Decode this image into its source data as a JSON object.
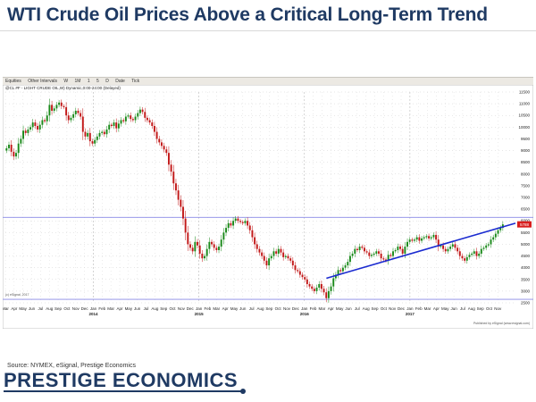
{
  "slide": {
    "title": "WTI Crude Oil Prices Above a Critical Long-Term Trend",
    "source": "Source: NYMEX, eSignal, Prestige Economics",
    "brand": "PRESTIGE ECONOMICS"
  },
  "colors": {
    "title": "#1f3a63",
    "candle_up": "#1a8a1a",
    "candle_down": "#c21818",
    "trendline": "#1b2bd0",
    "reference_line": "#8a8ae6",
    "price_tag": "#d81e1e"
  },
  "toolbar": {
    "items": [
      "Equities",
      "Other Intervals",
      "W",
      "1M",
      "1",
      "5",
      "D",
      "Date",
      "Tick"
    ]
  },
  "chart_data": {
    "type": "candlestick",
    "symbol_label": "@CL #F - LIGHT CRUDE OIL,W) Dynamic,0:00-24:00 (Delayed)",
    "watermark": "(c) eSignal, 2017",
    "publisher": "Published by eSignal (www.esignal.com)",
    "ylim": [
      2500,
      11500
    ],
    "yticks": [
      2500,
      3000,
      3500,
      4000,
      4500,
      5000,
      5500,
      6000,
      6500,
      7000,
      7500,
      8000,
      8500,
      9000,
      9500,
      10000,
      10500,
      11000,
      11500
    ],
    "ytick_labels": [
      "2500",
      "3000",
      "3500",
      "4000",
      "4500",
      "5000",
      "5500",
      "6000",
      "6500",
      "7000",
      "7500",
      "8000",
      "8500",
      "9000",
      "9500",
      "10000",
      "10500",
      "11000",
      "11500"
    ],
    "xlim": [
      0,
      58
    ],
    "month_ticks": [
      {
        "x": 0,
        "label": "Mar"
      },
      {
        "x": 1,
        "label": "Apr"
      },
      {
        "x": 2,
        "label": "May"
      },
      {
        "x": 3,
        "label": "Jun"
      },
      {
        "x": 4,
        "label": "Jul"
      },
      {
        "x": 5,
        "label": "Aug"
      },
      {
        "x": 6,
        "label": "Sep"
      },
      {
        "x": 7,
        "label": "Oct"
      },
      {
        "x": 8,
        "label": "Nov"
      },
      {
        "x": 9,
        "label": "Dec"
      },
      {
        "x": 10,
        "label": "Jan"
      },
      {
        "x": 11,
        "label": "Feb"
      },
      {
        "x": 12,
        "label": "Mar"
      },
      {
        "x": 13,
        "label": "Apr"
      },
      {
        "x": 14,
        "label": "May"
      },
      {
        "x": 15,
        "label": "Jun"
      },
      {
        "x": 16,
        "label": "Jul"
      },
      {
        "x": 17,
        "label": "Aug"
      },
      {
        "x": 18,
        "label": "Sep"
      },
      {
        "x": 19,
        "label": "Oct"
      },
      {
        "x": 20,
        "label": "Nov"
      },
      {
        "x": 21,
        "label": "Dec"
      },
      {
        "x": 22,
        "label": "Jan"
      },
      {
        "x": 23,
        "label": "Feb"
      },
      {
        "x": 24,
        "label": "Mar"
      },
      {
        "x": 25,
        "label": "Apr"
      },
      {
        "x": 26,
        "label": "May"
      },
      {
        "x": 27,
        "label": "Jun"
      },
      {
        "x": 28,
        "label": "Jul"
      },
      {
        "x": 29,
        "label": "Aug"
      },
      {
        "x": 30,
        "label": "Sep"
      },
      {
        "x": 31,
        "label": "Oct"
      },
      {
        "x": 32,
        "label": "Nov"
      },
      {
        "x": 33,
        "label": "Dec"
      },
      {
        "x": 34,
        "label": "Jan"
      },
      {
        "x": 35,
        "label": "Feb"
      },
      {
        "x": 36,
        "label": "Mar"
      },
      {
        "x": 37,
        "label": "Apr"
      },
      {
        "x": 38,
        "label": "May"
      },
      {
        "x": 39,
        "label": "Jun"
      },
      {
        "x": 40,
        "label": "Jul"
      },
      {
        "x": 41,
        "label": "Aug"
      },
      {
        "x": 42,
        "label": "Sep"
      },
      {
        "x": 43,
        "label": "Oct"
      },
      {
        "x": 44,
        "label": "Nov"
      },
      {
        "x": 45,
        "label": "Dec"
      },
      {
        "x": 46,
        "label": "Jan"
      },
      {
        "x": 47,
        "label": "Feb"
      },
      {
        "x": 48,
        "label": "Mar"
      },
      {
        "x": 49,
        "label": "Apr"
      },
      {
        "x": 50,
        "label": "May"
      },
      {
        "x": 51,
        "label": "Jun"
      },
      {
        "x": 52,
        "label": "Jul"
      },
      {
        "x": 53,
        "label": "Aug"
      },
      {
        "x": 54,
        "label": "Sep"
      },
      {
        "x": 55,
        "label": "Oct"
      },
      {
        "x": 56,
        "label": "Nov"
      }
    ],
    "year_ticks": [
      {
        "x": 10,
        "label": "2014"
      },
      {
        "x": 22,
        "label": "2015"
      },
      {
        "x": 34,
        "label": "2016"
      },
      {
        "x": 46,
        "label": "2017"
      }
    ],
    "weekly_closes": [
      9100,
      9250,
      8950,
      8750,
      8900,
      9300,
      9500,
      9850,
      9750,
      9900,
      10000,
      10200,
      10050,
      9900,
      10100,
      10300,
      10250,
      10500,
      10950,
      10700,
      10800,
      10950,
      11050,
      10900,
      10850,
      10500,
      10300,
      10400,
      10550,
      10700,
      10600,
      10450,
      9800,
      9600,
      9750,
      9400,
      9300,
      9450,
      9600,
      9750,
      9800,
      9700,
      9900,
      10100,
      10050,
      10200,
      9950,
      10150,
      10300,
      10250,
      10450,
      10500,
      10350,
      10300,
      10450,
      10600,
      10750,
      10650,
      10400,
      10300,
      10200,
      10050,
      9800,
      9500,
      9350,
      9200,
      9050,
      8900,
      8400,
      8100,
      7600,
      7300,
      6900,
      6600,
      6100,
      5500,
      5000,
      4850,
      4700,
      5100,
      4950,
      4600,
      4400,
      4500,
      4800,
      5100,
      5000,
      4850,
      4750,
      4900,
      5200,
      5500,
      5700,
      5900,
      5800,
      6000,
      6100,
      6000,
      5950,
      5900,
      6000,
      5800,
      5600,
      5300,
      5000,
      4800,
      4650,
      4500,
      4300,
      4100,
      4400,
      4500,
      4700,
      4600,
      4800,
      4650,
      4450,
      4500,
      4400,
      4300,
      4100,
      3900,
      3850,
      3700,
      3600,
      3500,
      3300,
      3200,
      3100,
      3000,
      3150,
      3300,
      3100,
      2950,
      2700,
      3000,
      3200,
      3550,
      3700,
      3900,
      3850,
      4000,
      4100,
      4250,
      4500,
      4600,
      4800,
      4750,
      4900,
      4850,
      4700,
      4650,
      4500,
      4550,
      4600,
      4700,
      4600,
      4400,
      4350,
      4300,
      4550,
      4500,
      4700,
      4750,
      4900,
      4800,
      4600,
      4900,
      5100,
      5200,
      5150,
      5200,
      5300,
      5150,
      5250,
      5300,
      5350,
      5250,
      5300,
      5400,
      5200,
      4900,
      4950,
      4800,
      4700,
      4800,
      4900,
      5000,
      4850,
      4700,
      4500,
      4400,
      4300,
      4450,
      4550,
      4600,
      4700,
      4500,
      4600,
      4800,
      4850,
      4950,
      5000,
      5200,
      5300,
      5450,
      5600,
      5700,
      5850
    ],
    "trendline": {
      "start": {
        "x": 36.5,
        "y": 3550
      },
      "end": {
        "x": 58,
        "y": 5900
      }
    },
    "reference_lines": [
      6150,
      2650
    ],
    "last_price_label": "5788"
  }
}
